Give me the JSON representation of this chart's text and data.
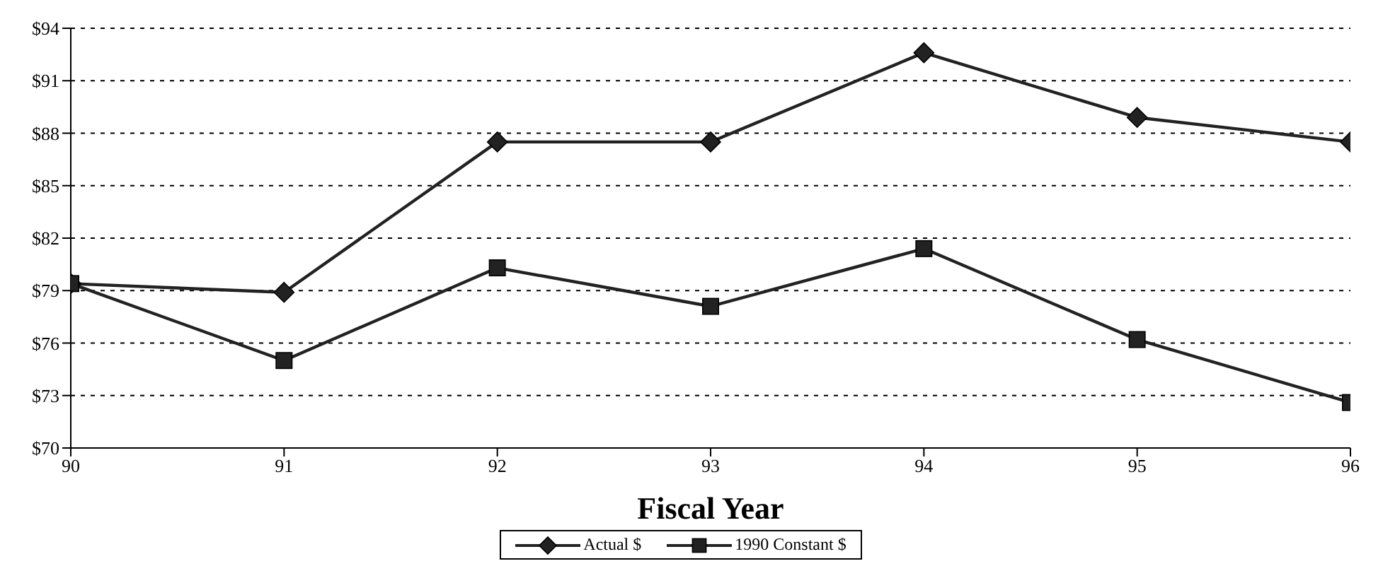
{
  "chart_data": {
    "type": "line",
    "xlabel": "Fiscal Year",
    "x": [
      90,
      91,
      92,
      93,
      94,
      95,
      96
    ],
    "series": [
      {
        "name": "Actual $",
        "color": "#222222",
        "marker": "diamond",
        "values": [
          79.4,
          78.9,
          87.5,
          87.5,
          92.6,
          88.9,
          87.5
        ]
      },
      {
        "name": "1990 Constant $",
        "color": "#222222",
        "marker": "square",
        "values": [
          79.4,
          75.0,
          80.3,
          78.1,
          81.4,
          76.2,
          72.6
        ]
      }
    ],
    "xlim": [
      90,
      96
    ],
    "xticks": [
      90,
      91,
      92,
      93,
      94,
      95,
      96
    ],
    "ylim": [
      70,
      94
    ],
    "yticks": [
      {
        "value": 70,
        "label": "$70"
      },
      {
        "value": 73,
        "label": "$73"
      },
      {
        "value": 76,
        "label": "$76"
      },
      {
        "value": 79,
        "label": "$79"
      },
      {
        "value": 82,
        "label": "$82"
      },
      {
        "value": 85,
        "label": "$85"
      },
      {
        "value": 88,
        "label": "$88"
      },
      {
        "value": 91,
        "label": "$91"
      },
      {
        "value": 94,
        "label": "$94"
      }
    ],
    "grid": "y",
    "legend": "bottom",
    "line_style": "solid"
  }
}
